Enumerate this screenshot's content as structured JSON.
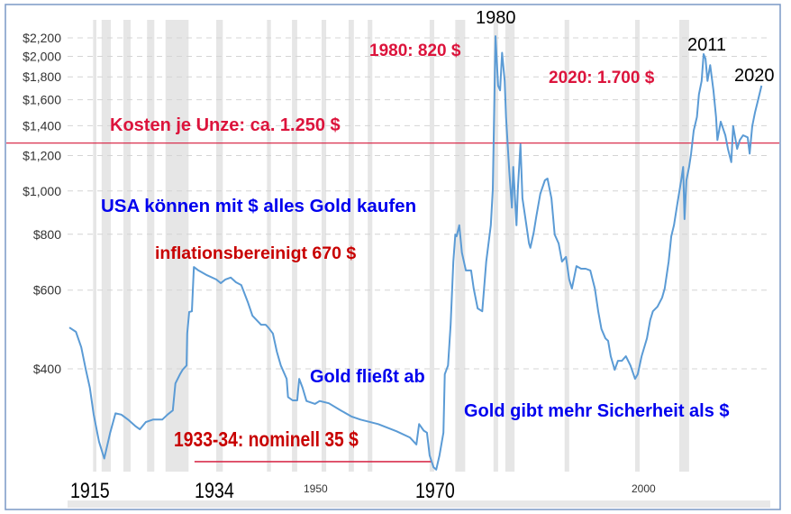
{
  "chart_data": {
    "type": "line",
    "title": "",
    "xlabel": "",
    "ylabel": "",
    "yscale": "log",
    "xlim": [
      1915,
      2020
    ],
    "ylim": [
      235,
      2300
    ],
    "grid": "horizontal dashed",
    "line_color": "#5b9bd5",
    "y_ticks": [
      {
        "value": 400,
        "label": "$400"
      },
      {
        "value": 600,
        "label": "$600"
      },
      {
        "value": 800,
        "label": "$800"
      },
      {
        "value": 1000,
        "label": "$1,000"
      },
      {
        "value": 1200,
        "label": "$1,200"
      },
      {
        "value": 1400,
        "label": "$1,400"
      },
      {
        "value": 1600,
        "label": "$1,600"
      },
      {
        "value": 1800,
        "label": "$1,800"
      },
      {
        "value": 2000,
        "label": "$2,000"
      },
      {
        "value": 2200,
        "label": "$2,200"
      }
    ],
    "x_tick_labels": [
      "1915",
      "1934",
      "1950",
      "1970",
      "2000"
    ],
    "shaded_periods": [
      [
        1918.6,
        1919.1
      ],
      [
        1919.9,
        1921.3
      ],
      [
        1923.2,
        1924.3
      ],
      [
        1926.8,
        1927.9
      ],
      [
        1929.6,
        1933.1
      ],
      [
        1937.3,
        1938.3
      ],
      [
        1945.0,
        1945.6
      ],
      [
        1948.8,
        1949.6
      ],
      [
        1953.3,
        1954.0
      ],
      [
        1957.4,
        1958.2
      ],
      [
        1960.3,
        1961.0
      ],
      [
        1969.7,
        1970.4
      ],
      [
        1973.6,
        1975.1
      ],
      [
        1979.4,
        1980.1
      ],
      [
        1981.2,
        1982.6
      ],
      [
        1990.2,
        1990.9
      ],
      [
        2000.9,
        2001.6
      ],
      [
        2007.6,
        2009.1
      ]
    ],
    "shaded_color": "#e6e6e6",
    "series": [
      {
        "x": [
          1915.0,
          1916.0,
          1916.8,
          1917.5,
          1918.1,
          1918.7,
          1919.5,
          1920.3,
          1921.2,
          1922.0,
          1922.9,
          1923.9,
          1925.0,
          1925.7,
          1926.6,
          1927.7,
          1929.1,
          1929.9,
          1930.7,
          1931.1,
          1931.8,
          1932.2,
          1932.8,
          1932.9,
          1933.2,
          1933.6,
          1933.9,
          1934.6,
          1935.9,
          1937.3,
          1938.0,
          1938.7,
          1939.5,
          1940.3,
          1941.1,
          1942.1,
          1942.8,
          1944.1,
          1944.8,
          1945.2,
          1945.9,
          1946.5,
          1947.1,
          1948.0,
          1948.2,
          1948.9,
          1949.6,
          1949.9,
          1950.4,
          1951.0,
          1952.3,
          1953.0,
          1954.4,
          1956.2,
          1957.8,
          1959.2,
          1961.9,
          1964.7,
          1966.7,
          1967.7,
          1968.1,
          1968.8,
          1969.3,
          1969.7,
          1970.3,
          1970.7,
          1971.2,
          1971.8,
          1972.0,
          1972.5,
          1972.9,
          1973.3,
          1973.6,
          1973.8,
          1974.2,
          1974.6,
          1975.2,
          1976.0,
          1976.4,
          1977.0,
          1977.7,
          1978.3,
          1979.0,
          1979.3,
          1979.7,
          1980.1,
          1980.4,
          1980.7,
          1981.1,
          1981.3,
          1981.8,
          1982.2,
          1982.4,
          1982.9,
          1983.1,
          1983.5,
          1983.8,
          1984.4,
          1984.8,
          1985.0,
          1985.5,
          1985.9,
          1986.5,
          1987.2,
          1987.6,
          1988.2,
          1988.7,
          1989.3,
          1989.8,
          1990.4,
          1990.9,
          1991.3,
          1992.0,
          1992.7,
          1993.4,
          1994.1,
          1994.8,
          1995.3,
          1995.8,
          1996.4,
          1996.8,
          1997.2,
          1997.8,
          1998.3,
          1998.9,
          1999.5,
          2000.2,
          2000.9,
          2001.3,
          2001.9,
          2002.7,
          2003.2,
          2003.6,
          2004.3,
          2005.0,
          2005.4,
          2006.0,
          2006.4,
          2006.8,
          2007.3,
          2007.9,
          2008.2,
          2008.4,
          2008.7,
          2009.1,
          2009.4,
          2009.8,
          2010.3,
          2010.6,
          2011.0,
          2011.3,
          2011.6,
          2011.9,
          2012.3,
          2012.8,
          2013.2,
          2013.4,
          2013.9,
          2014.6,
          2015.0,
          2015.5,
          2015.8,
          2016.4,
          2016.8,
          2017.3,
          2018.0,
          2018.3,
          2018.7,
          2019.1,
          2019.6,
          2020.1
        ],
        "y": [
          495,
          484,
          447,
          398,
          363,
          316,
          275,
          252,
          288,
          318,
          316,
          308,
          298,
          293,
          304,
          308,
          308,
          316,
          323,
          371,
          389,
          398,
          407,
          480,
          536,
          538,
          676,
          664,
          648,
          634,
          622,
          634,
          640,
          625,
          616,
          564,
          526,
          502,
          502,
          495,
          480,
          437,
          407,
          380,
          346,
          340,
          340,
          380,
          363,
          339,
          334,
          339,
          335,
          323,
          313,
          308,
          301,
          290,
          281,
          271,
          301,
          291,
          288,
          256,
          241,
          238,
          256,
          288,
          389,
          407,
          502,
          695,
          799,
          792,
          838,
          728,
          664,
          664,
          605,
          546,
          538,
          695,
          838,
          1008,
          2220,
          1720,
          1679,
          2038,
          1762,
          1464,
          1106,
          918,
          1132,
          838,
          1008,
          1272,
          963,
          838,
          763,
          746,
          807,
          877,
          985,
          1056,
          1066,
          963,
          799,
          763,
          695,
          712,
          634,
          605,
          679,
          670,
          670,
          664,
          605,
          538,
          491,
          468,
          462,
          427,
          398,
          417,
          417,
          427,
          407,
          380,
          389,
          427,
          468,
          514,
          538,
          551,
          577,
          605,
          695,
          792,
          838,
          932,
          1056,
          1132,
          865,
          1056,
          1132,
          1212,
          1364,
          1464,
          1644,
          1762,
          2024,
          1976,
          1762,
          1912,
          1679,
          1464,
          1300,
          1429,
          1332,
          1242,
          1160,
          1397,
          1242,
          1300,
          1332,
          1318,
          1212,
          1397,
          1497,
          1602,
          1720
        ]
      }
    ],
    "reference_lines": [
      {
        "label": "Kosten je Unze: ca. 1.250  $",
        "value": 1280,
        "color": "#d9304f"
      },
      {
        "label": "1933-34: nominell 35 $",
        "value": 248,
        "from": 1934,
        "to": 1970,
        "color": "#d9304f"
      }
    ],
    "annotations": {
      "peak_1980_year": "1980",
      "peak_1980_value": "1980: 820 $",
      "value_2020": "2020: 1.700 $",
      "peak_2011_year": "2011",
      "end_2020_year": "2020",
      "usa_buy": "USA können mit $ alles Gold kaufen",
      "inflation_adjusted": "inflationsbereinigt 670 $",
      "gold_outflow": "Gold fließt ab",
      "gold_security": "Gold gibt mehr Sicherheit als $"
    },
    "colors": {
      "crimson": "#dc143c",
      "darkred": "#c80000",
      "blue": "#0000ee",
      "black": "#000000"
    }
  }
}
